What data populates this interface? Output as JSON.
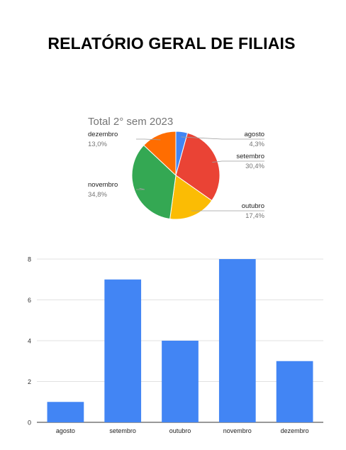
{
  "page": {
    "title": "RELATÓRIO GERAL DE FILIAIS"
  },
  "chart_data": [
    {
      "type": "pie",
      "title": "Total 2° sem 2023",
      "slices": [
        {
          "label": "agosto",
          "value": 4.3,
          "pct": "4,3%",
          "color": "#4285f4"
        },
        {
          "label": "setembro",
          "value": 30.4,
          "pct": "30,4%",
          "color": "#ea4335"
        },
        {
          "label": "outubro",
          "value": 17.4,
          "pct": "17,4%",
          "color": "#fbbc04"
        },
        {
          "label": "novembro",
          "value": 34.8,
          "pct": "34,8%",
          "color": "#34a853"
        },
        {
          "label": "dezembro",
          "value": 13.0,
          "pct": "13,0%",
          "color": "#ff6d01"
        }
      ],
      "legend": "side-labels"
    },
    {
      "type": "bar",
      "categories": [
        "agosto",
        "setembro",
        "outubro",
        "novembro",
        "dezembro"
      ],
      "values": [
        1,
        7,
        4,
        8,
        3
      ],
      "yticks": [
        "0",
        "2",
        "4",
        "6",
        "8"
      ],
      "ylim": [
        0,
        8
      ],
      "color": "#4285f4",
      "grid": true
    }
  ]
}
